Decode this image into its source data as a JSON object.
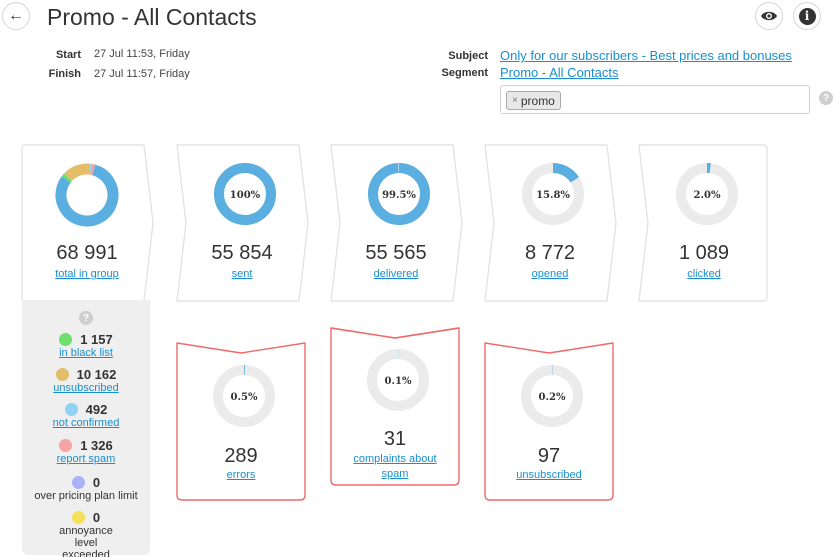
{
  "header": {
    "title": "Promo - All Contacts",
    "back_icon": "←",
    "info_icon": "i"
  },
  "meta": {
    "start_label": "Start",
    "start_value": "27 Jul 11:53, Friday",
    "finish_label": "Finish",
    "finish_value": "27 Jul 11:57, Friday",
    "subject_label": "Subject",
    "subject_value": "Only for our subscribers - Best prices and bonuses",
    "segment_label": "Segment",
    "segment_value": "Promo - All Contacts",
    "tag_remove": "×",
    "tag": "promo",
    "help": "?"
  },
  "colors": {
    "ring_fill": "#5aaee0",
    "ring_track": "#ebebeb",
    "card_border": "#e3e3e3",
    "error_border": "#ee6a6a",
    "link": "#1a8fd0"
  },
  "stats": [
    {
      "value": "68 991",
      "label": "total in group"
    },
    {
      "value": "55 854",
      "label": "sent",
      "pct": "100%",
      "fraction": 1.0
    },
    {
      "value": "55 565",
      "label": "delivered",
      "pct": "99.5%",
      "fraction": 0.995
    },
    {
      "value": "8 772",
      "label": "opened",
      "pct": "15.8%",
      "fraction": 0.158
    },
    {
      "value": "1 089",
      "label": "clicked",
      "pct": "2.0%",
      "fraction": 0.02
    }
  ],
  "issues": [
    {
      "value": "289",
      "label": "errors",
      "pct": "0.5%",
      "fraction": 0.005
    },
    {
      "value": "31",
      "label": "complaints about spam",
      "pct": "0.1%",
      "fraction": 0.001
    },
    {
      "value": "97",
      "label": "unsubscribed",
      "pct": "0.2%",
      "fraction": 0.002
    }
  ],
  "group_breakdown": {
    "help": "?",
    "items": [
      {
        "value": "1 157",
        "label": "in black list",
        "color": "#6fe06f",
        "link": true
      },
      {
        "value": "10 162",
        "label": "unsubscribed",
        "color": "#e2bd6a",
        "link": true
      },
      {
        "value": "492",
        "label": "not confirmed",
        "color": "#8fd2f5",
        "link": true
      },
      {
        "value": "1 326",
        "label": "report spam",
        "color": "#f5a3a3",
        "link": true
      },
      {
        "value": "0",
        "label": "over pricing plan limit",
        "color": "#aab2f5",
        "link": false
      },
      {
        "value": "0",
        "label": "annoyance level exceeded",
        "color": "#f5e05a",
        "link": false
      }
    ]
  }
}
